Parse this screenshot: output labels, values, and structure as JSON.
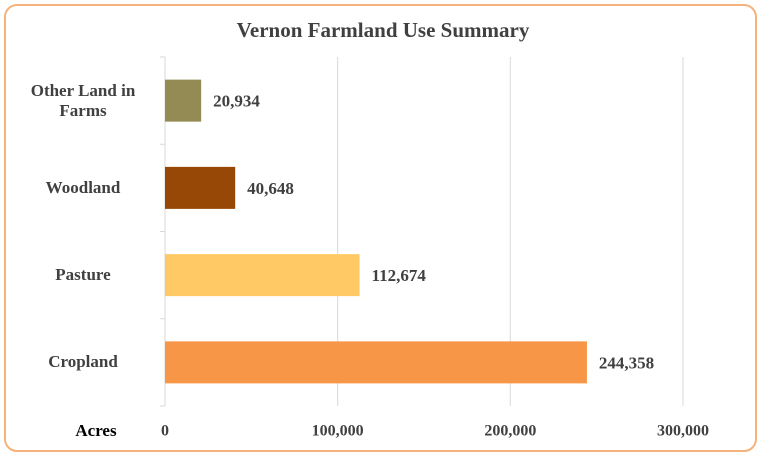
{
  "chart_data": {
    "type": "bar",
    "orientation": "horizontal",
    "title": "Vernon Farmland Use Summary",
    "x_label": "Acres",
    "categories": [
      "Other Land in Farms",
      "Woodland",
      "Pasture",
      "Cropland"
    ],
    "values": [
      20934,
      40648,
      112674,
      244358
    ],
    "value_labels": [
      "20,934",
      "40,648",
      "112,674",
      "244,358"
    ],
    "colors": [
      "#948a54",
      "#974806",
      "#ffc965",
      "#f79646"
    ],
    "xlim": [
      0,
      300000
    ],
    "xticks": [
      0,
      {
        "value": 100000,
        "label": "100,000"
      },
      {
        "value": 200000,
        "label": "200,000"
      },
      {
        "value": 300000,
        "label": "300,000"
      }
    ],
    "grid": true
  }
}
